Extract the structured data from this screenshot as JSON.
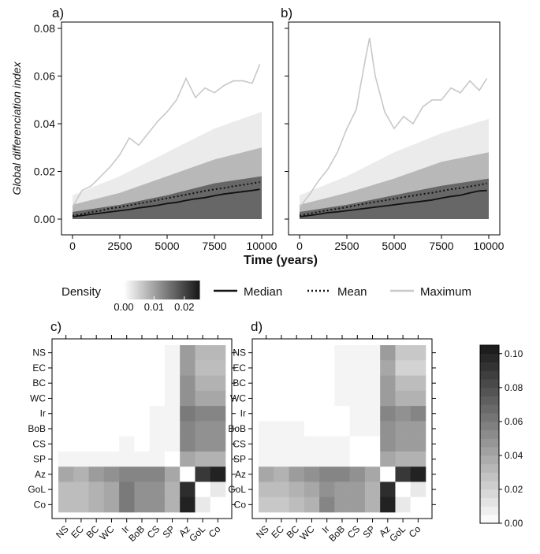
{
  "chart_data": [
    {
      "panel": "a)",
      "type": "line",
      "ylabel": "Global differenciation index",
      "xlabel": "Time (years)",
      "xlim": [
        0,
        10000
      ],
      "ylim": [
        0,
        0.08
      ],
      "x_ticks": [
        "0",
        "2500",
        "5000",
        "7500",
        "10000"
      ],
      "y_ticks": [
        "0.00",
        "0.02",
        "0.04",
        "0.06",
        "0.08"
      ],
      "series": [
        {
          "name": "Median",
          "style": "solid",
          "color": "#111111",
          "x": [
            0,
            500,
            1000,
            1500,
            2000,
            2500,
            3000,
            3500,
            4000,
            4500,
            5000,
            5500,
            6000,
            6500,
            7000,
            7500,
            8000,
            8500,
            9000,
            9500,
            9900
          ],
          "y": [
            0.001,
            0.0015,
            0.002,
            0.0025,
            0.003,
            0.0035,
            0.004,
            0.0047,
            0.0052,
            0.0058,
            0.0065,
            0.007,
            0.0078,
            0.0085,
            0.009,
            0.0098,
            0.0105,
            0.011,
            0.0115,
            0.012,
            0.0125
          ]
        },
        {
          "name": "Mean",
          "style": "dotted",
          "color": "#111111",
          "x": [
            0,
            500,
            1000,
            1500,
            2000,
            2500,
            3000,
            3500,
            4000,
            4500,
            5000,
            5500,
            6000,
            6500,
            7000,
            7500,
            8000,
            8500,
            9000,
            9500,
            9900
          ],
          "y": [
            0.0015,
            0.002,
            0.003,
            0.0035,
            0.0045,
            0.005,
            0.0058,
            0.0065,
            0.0072,
            0.008,
            0.0088,
            0.0095,
            0.0102,
            0.011,
            0.0118,
            0.0125,
            0.013,
            0.0138,
            0.0143,
            0.015,
            0.0155
          ]
        },
        {
          "name": "Maximum",
          "style": "solid",
          "color": "#c8c8c8",
          "x": [
            0,
            500,
            1000,
            1500,
            2000,
            2500,
            3000,
            3500,
            4000,
            4500,
            5000,
            5500,
            6000,
            6500,
            7000,
            7500,
            8000,
            8500,
            9000,
            9500,
            9900
          ],
          "y": [
            0.005,
            0.012,
            0.014,
            0.018,
            0.022,
            0.027,
            0.034,
            0.031,
            0.036,
            0.041,
            0.045,
            0.05,
            0.059,
            0.051,
            0.055,
            0.053,
            0.056,
            0.058,
            0.058,
            0.057,
            0.065
          ]
        }
      ],
      "density_bands": [
        {
          "x": [
            0,
            2500,
            5000,
            7500,
            10000
          ],
          "lo": [
            0.0,
            0.0,
            0.0,
            0.0,
            0.0
          ],
          "hi": [
            0.003,
            0.006,
            0.01,
            0.015,
            0.018
          ],
          "level": 0.02
        },
        {
          "x": [
            0,
            2500,
            5000,
            7500,
            10000
          ],
          "lo": [
            0.0,
            0.0,
            0.0,
            0.0,
            0.0
          ],
          "hi": [
            0.006,
            0.011,
            0.018,
            0.025,
            0.03
          ],
          "level": 0.01
        },
        {
          "x": [
            0,
            2500,
            5000,
            7500,
            10000
          ],
          "lo": [
            0.0,
            0.0,
            0.0,
            0.0,
            0.0
          ],
          "hi": [
            0.01,
            0.018,
            0.028,
            0.038,
            0.045
          ],
          "level": 0.003
        }
      ]
    },
    {
      "panel": "b)",
      "type": "line",
      "xlabel": "Time (years)",
      "xlim": [
        0,
        10000
      ],
      "ylim": [
        0,
        0.08
      ],
      "x_ticks": [
        "0",
        "2500",
        "5000",
        "7500",
        "10000"
      ],
      "series": [
        {
          "name": "Median",
          "style": "solid",
          "color": "#111111",
          "x": [
            0,
            500,
            1000,
            1500,
            2000,
            2500,
            3000,
            3500,
            4000,
            4500,
            5000,
            5500,
            6000,
            6500,
            7000,
            7500,
            8000,
            8500,
            9000,
            9500,
            9900
          ],
          "y": [
            0.001,
            0.0015,
            0.002,
            0.0027,
            0.003,
            0.0035,
            0.004,
            0.0045,
            0.005,
            0.0055,
            0.006,
            0.0065,
            0.007,
            0.0075,
            0.008,
            0.0088,
            0.0095,
            0.01,
            0.011,
            0.0118,
            0.012
          ]
        },
        {
          "name": "Mean",
          "style": "dotted",
          "color": "#111111",
          "x": [
            0,
            500,
            1000,
            1500,
            2000,
            2500,
            3000,
            3500,
            4000,
            4500,
            5000,
            5500,
            6000,
            6500,
            7000,
            7500,
            8000,
            8500,
            9000,
            9500,
            9900
          ],
          "y": [
            0.0015,
            0.0022,
            0.003,
            0.0037,
            0.0043,
            0.005,
            0.0058,
            0.0065,
            0.0072,
            0.0078,
            0.0085,
            0.0092,
            0.0098,
            0.0105,
            0.011,
            0.0118,
            0.0125,
            0.013,
            0.0137,
            0.0143,
            0.015
          ]
        },
        {
          "name": "Maximum",
          "style": "solid",
          "color": "#c8c8c8",
          "x": [
            0,
            500,
            1000,
            1500,
            2000,
            2500,
            3000,
            3200,
            3500,
            3700,
            4000,
            4500,
            5000,
            5500,
            6000,
            6500,
            7000,
            7500,
            8000,
            8500,
            9000,
            9500,
            9900
          ],
          "y": [
            0.005,
            0.01,
            0.016,
            0.021,
            0.028,
            0.038,
            0.046,
            0.055,
            0.068,
            0.076,
            0.06,
            0.045,
            0.038,
            0.043,
            0.04,
            0.047,
            0.05,
            0.05,
            0.055,
            0.053,
            0.058,
            0.054,
            0.059
          ]
        }
      ],
      "density_bands": [
        {
          "x": [
            0,
            2500,
            5000,
            7500,
            10000
          ],
          "lo": [
            0.0,
            0.0,
            0.0,
            0.0,
            0.0
          ],
          "hi": [
            0.003,
            0.006,
            0.01,
            0.014,
            0.017
          ],
          "level": 0.02
        },
        {
          "x": [
            0,
            2500,
            5000,
            7500,
            10000
          ],
          "lo": [
            0.0,
            0.0,
            0.0,
            0.0,
            0.0
          ],
          "hi": [
            0.006,
            0.011,
            0.017,
            0.024,
            0.028
          ],
          "level": 0.01
        },
        {
          "x": [
            0,
            2500,
            5000,
            7500,
            10000
          ],
          "lo": [
            0.0,
            0.0,
            0.0,
            0.0,
            0.0
          ],
          "hi": [
            0.01,
            0.018,
            0.028,
            0.036,
            0.042
          ],
          "level": 0.003
        }
      ]
    },
    {
      "panel": "c)",
      "type": "heatmap",
      "labels": [
        "NS",
        "EC",
        "BC",
        "WC",
        "Ir",
        "BoB",
        "CS",
        "SP",
        "Az",
        "GoL",
        "Co"
      ],
      "matrix": [
        [
          0,
          0,
          0,
          0,
          0,
          0,
          0,
          0.005,
          0.045,
          0.032,
          0.032
        ],
        [
          0,
          0,
          0,
          0,
          0,
          0,
          0,
          0.005,
          0.045,
          0.03,
          0.03
        ],
        [
          0,
          0,
          0,
          0,
          0,
          0,
          0,
          0.005,
          0.05,
          0.035,
          0.035
        ],
        [
          0,
          0,
          0,
          0,
          0,
          0,
          0,
          0.005,
          0.05,
          0.04,
          0.04
        ],
        [
          0,
          0,
          0,
          0,
          0,
          0,
          0.005,
          0.005,
          0.06,
          0.055,
          0.055
        ],
        [
          0,
          0,
          0,
          0,
          0,
          0,
          0.005,
          0.005,
          0.055,
          0.05,
          0.05
        ],
        [
          0,
          0,
          0,
          0,
          0.005,
          0,
          0.005,
          0.005,
          0.055,
          0.05,
          0.05
        ],
        [
          0.005,
          0.005,
          0.005,
          0.005,
          0.005,
          0.005,
          0.005,
          0,
          0.04,
          0.035,
          0.035
        ],
        [
          0.04,
          0.035,
          0.045,
          0.05,
          0.055,
          0.055,
          0.055,
          0.04,
          0,
          0.09,
          0.1
        ],
        [
          0.03,
          0.03,
          0.035,
          0.04,
          0.06,
          0.05,
          0.05,
          0.035,
          0.095,
          0,
          0.01
        ],
        [
          0.03,
          0.03,
          0.035,
          0.04,
          0.06,
          0.05,
          0.05,
          0.035,
          0.1,
          0.01,
          0
        ]
      ]
    },
    {
      "panel": "d)",
      "type": "heatmap",
      "labels": [
        "NS",
        "EC",
        "BC",
        "WC",
        "Ir",
        "BoB",
        "CS",
        "SP",
        "Az",
        "GoL",
        "Co"
      ],
      "matrix": [
        [
          0,
          0,
          0,
          0,
          0,
          0.005,
          0.005,
          0.005,
          0.045,
          0.025,
          0.025
        ],
        [
          0,
          0,
          0,
          0,
          0,
          0.005,
          0.005,
          0.005,
          0.04,
          0.02,
          0.02
        ],
        [
          0,
          0,
          0,
          0,
          0,
          0.005,
          0.005,
          0.005,
          0.045,
          0.03,
          0.03
        ],
        [
          0,
          0,
          0,
          0,
          0,
          0.005,
          0.005,
          0.005,
          0.045,
          0.035,
          0.035
        ],
        [
          0,
          0,
          0,
          0,
          0,
          0,
          0.005,
          0.005,
          0.055,
          0.05,
          0.055
        ],
        [
          0.005,
          0.005,
          0.005,
          0,
          0,
          0,
          0.005,
          0.005,
          0.05,
          0.045,
          0.045
        ],
        [
          0.005,
          0.005,
          0.005,
          0.005,
          0.005,
          0.005,
          0,
          0,
          0.05,
          0.045,
          0.045
        ],
        [
          0.005,
          0.005,
          0.005,
          0.005,
          0.005,
          0.005,
          0,
          0,
          0.04,
          0.035,
          0.035
        ],
        [
          0.04,
          0.035,
          0.045,
          0.05,
          0.055,
          0.055,
          0.05,
          0.04,
          0,
          0.09,
          0.1
        ],
        [
          0.03,
          0.03,
          0.035,
          0.04,
          0.05,
          0.045,
          0.045,
          0.035,
          0.095,
          0,
          0.01
        ],
        [
          0.025,
          0.025,
          0.03,
          0.035,
          0.055,
          0.045,
          0.045,
          0.035,
          0.1,
          0.01,
          0
        ]
      ]
    }
  ],
  "density_legend": {
    "title": "Density",
    "ticks": [
      "0.00",
      "0.01",
      "0.02"
    ],
    "range": [
      0,
      0.025
    ]
  },
  "line_legend": [
    {
      "label": "Median",
      "style": "solid",
      "color": "#111111"
    },
    {
      "label": "Mean",
      "style": "dotted",
      "color": "#111111"
    },
    {
      "label": "Maximum",
      "style": "solid",
      "color": "#c8c8c8"
    }
  ],
  "colorbar": {
    "ticks": [
      "0.00",
      "0.02",
      "0.04",
      "0.06",
      "0.08",
      "0.10"
    ],
    "range": [
      0,
      0.105
    ]
  }
}
